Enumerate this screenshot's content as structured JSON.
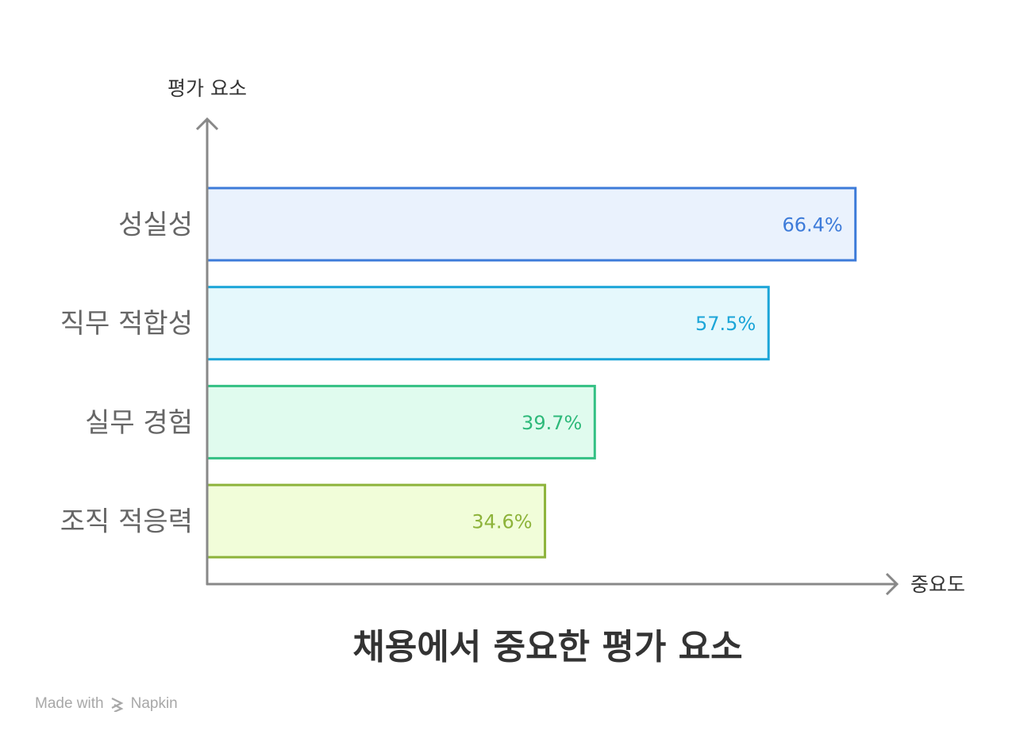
{
  "chart_data": {
    "type": "bar",
    "orientation": "horizontal",
    "title": "채용에서 중요한 평가 요소",
    "ylabel": "평가 요소",
    "xlabel": "중요도",
    "categories": [
      "성실성",
      "직무 적합성",
      "실무 경험",
      "조직 적응력"
    ],
    "values": [
      66.4,
      57.5,
      39.7,
      34.6
    ],
    "value_labels": [
      "66.4%",
      "57.5%",
      "39.7%",
      "34.6%"
    ],
    "xlim": [
      0,
      100
    ],
    "grid": false,
    "legend": "none",
    "colors": {
      "strokes": [
        "#3d7bd9",
        "#1ba5d8",
        "#34c084",
        "#8db33a"
      ],
      "fills": [
        "#eaf2fd",
        "#e5f8fc",
        "#e0fbee",
        "#f1fdd9"
      ],
      "text": [
        "#3d7bd9",
        "#1ba5d8",
        "#2eb97a",
        "#8db33a"
      ],
      "axis": "#888888"
    }
  },
  "footer": {
    "made_with": "Made with",
    "brand": "Napkin",
    "brand_icon": "napkin-logo-icon"
  }
}
